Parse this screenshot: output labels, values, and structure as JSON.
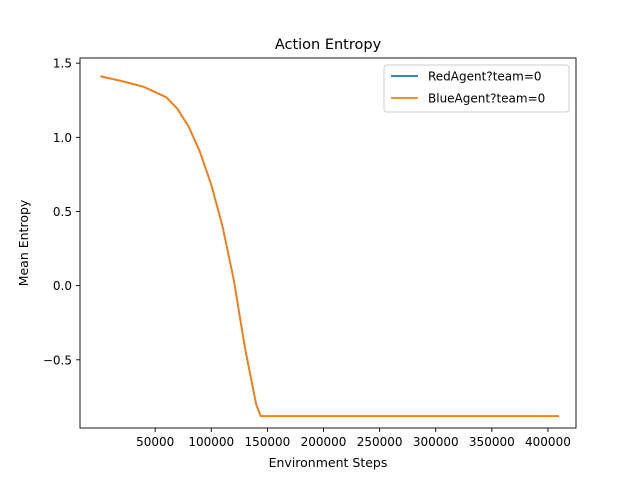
{
  "chart_data": {
    "type": "line",
    "title": "Action Entropy",
    "xlabel": "Environment Steps",
    "ylabel": "Mean Entropy",
    "xlim": [
      -17000,
      425000
    ],
    "ylim": [
      -0.96,
      1.535
    ],
    "xticks": [
      50000,
      100000,
      150000,
      200000,
      250000,
      300000,
      350000,
      400000
    ],
    "xtick_labels": [
      "50000",
      "100000",
      "150000",
      "200000",
      "250000",
      "300000",
      "350000",
      "400000"
    ],
    "yticks": [
      -0.5,
      0.0,
      0.5,
      1.0,
      1.5
    ],
    "ytick_labels": [
      "−0.5",
      "0.0",
      "0.5",
      "1.0",
      "1.5"
    ],
    "grid": false,
    "legend_position": "top-right",
    "series": [
      {
        "name": "RedAgent?team=0",
        "color": "#1f77b4",
        "x": [
          2000,
          20000,
          40000,
          60000,
          70000,
          80000,
          90000,
          100000,
          110000,
          120000,
          130000,
          140000,
          144000,
          147000,
          160000,
          200000,
          250000,
          300000,
          350000,
          400000,
          409000
        ],
        "y": [
          1.41,
          1.38,
          1.34,
          1.27,
          1.19,
          1.07,
          0.9,
          0.68,
          0.4,
          0.04,
          -0.42,
          -0.8,
          -0.88,
          -0.88,
          -0.88,
          -0.88,
          -0.88,
          -0.88,
          -0.88,
          -0.88,
          -0.88
        ]
      },
      {
        "name": "BlueAgent?team=0",
        "color": "#ff7f0e",
        "x": [
          2000,
          20000,
          40000,
          60000,
          70000,
          80000,
          90000,
          100000,
          110000,
          120000,
          130000,
          140000,
          144000,
          147000,
          160000,
          200000,
          250000,
          300000,
          350000,
          400000,
          409000
        ],
        "y": [
          1.41,
          1.38,
          1.34,
          1.27,
          1.19,
          1.07,
          0.9,
          0.68,
          0.4,
          0.04,
          -0.42,
          -0.8,
          -0.88,
          -0.88,
          -0.88,
          -0.88,
          -0.88,
          -0.88,
          -0.88,
          -0.88,
          -0.88
        ]
      }
    ]
  }
}
